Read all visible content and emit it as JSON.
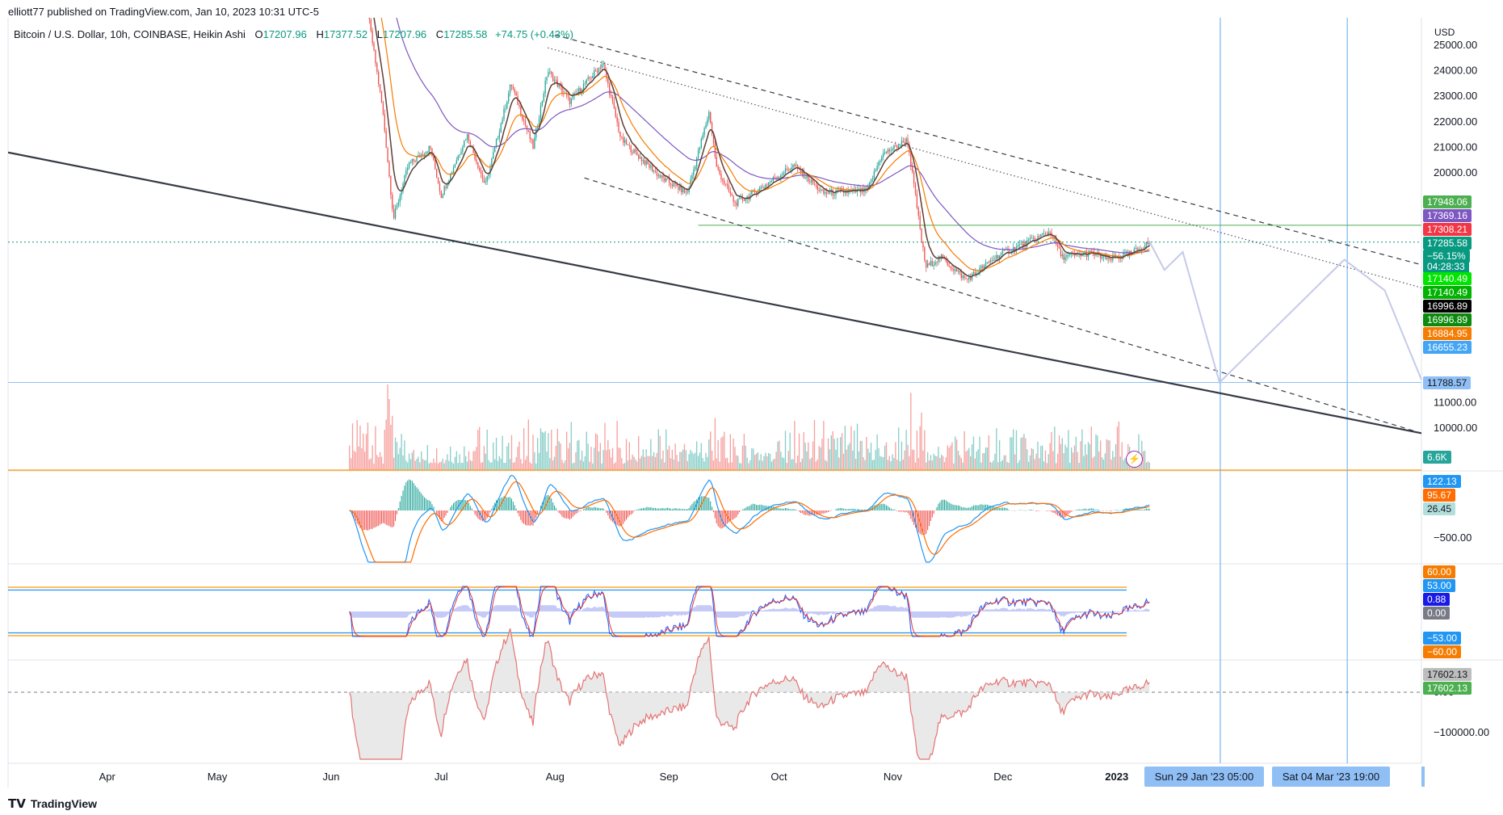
{
  "header": {
    "publisher": "elliott77 published on TradingView.com, Jan 10, 2023 10:31 UTC-5"
  },
  "legend": {
    "symbol": "Bitcoin / U.S. Dollar, 10h, COINBASE, Heikin Ashi",
    "o_label": "O",
    "o_value": "17207.96",
    "h_label": "H",
    "h_value": "17377.52",
    "l_label": "L",
    "l_value": "17207.96",
    "c_label": "C",
    "c_value": "17285.58",
    "change": "+74.75 (+0.43%)"
  },
  "footer": {
    "brand": "TradingView",
    "logo_icon": "tradingview-logo-icon"
  },
  "currency": "USD",
  "colors": {
    "up": "#26a69a",
    "down": "#ef5350",
    "ema_orange": "#f57c00",
    "ma_purple": "#7e57c2",
    "green_line": "#4caf50",
    "trend": "#363a45",
    "projection": "#c5cae9",
    "vline": "#5aa8f0",
    "hline_blue": "#2196f3",
    "osc_orange": "#ff9800"
  },
  "chart_data": {
    "type": "candlestick",
    "interval": "10h",
    "price_axis": {
      "ticks": [
        "25000.00",
        "24000.00",
        "23000.00",
        "22000.00",
        "21000.00",
        "20000.00",
        "11000.00",
        "10000.00"
      ],
      "tick_values": [
        25000,
        24000,
        23000,
        22000,
        21000,
        20000,
        11000,
        10000
      ]
    },
    "x_axis": {
      "ticks": [
        "Apr",
        "May",
        "Jun",
        "Jul",
        "Aug",
        "Sep",
        "Oct",
        "Nov",
        "Dec",
        "2023"
      ]
    },
    "price_labels": [
      {
        "text": "17948.06",
        "color": "#4caf50"
      },
      {
        "text": "17369.16",
        "color": "#7e57c2"
      },
      {
        "text": "17308.21",
        "color": "#f23645"
      },
      {
        "text": "17285.58",
        "color": "#089981"
      },
      {
        "text": "−56.15%",
        "color": "#089981"
      },
      {
        "text": "04:28:33",
        "color": "#089981"
      },
      {
        "text": "17140.49",
        "color": "#00e600"
      },
      {
        "text": "17140.49",
        "color": "#00b300"
      },
      {
        "text": "16996.89",
        "color": "#000000"
      },
      {
        "text": "16996.89",
        "color": "#0c8a0c"
      },
      {
        "text": "16884.95",
        "color": "#f57c00"
      },
      {
        "text": "16655.23",
        "color": "#42a5f5"
      },
      {
        "text": "11788.57",
        "color": "#90bff5"
      },
      {
        "text": "6.6K",
        "color": "#26a69a"
      }
    ],
    "macd_axis": {
      "ticks": [
        "−500.00"
      ]
    },
    "macd_labels": [
      {
        "text": "122.13",
        "color": "#2196f3"
      },
      {
        "text": "95.67",
        "color": "#ff6d00"
      },
      {
        "text": "26.45",
        "color": "#b2dfdb"
      }
    ],
    "osc_labels": [
      {
        "text": "60.00",
        "color": "#f57c00"
      },
      {
        "text": "53.00",
        "color": "#2196f3"
      },
      {
        "text": "0.88",
        "color": "#1a1ae6"
      },
      {
        "text": "0.00",
        "color": "#787b86"
      },
      {
        "text": "−53.00",
        "color": "#2196f3"
      },
      {
        "text": "−60.00",
        "color": "#f57c00"
      }
    ],
    "obv_axis": {
      "ticks": [
        "0.00",
        "−100000.00"
      ]
    },
    "obv_labels": [
      {
        "text": "17602.13",
        "color": "#bdbdbd"
      },
      {
        "text": "17602.13",
        "color": "#4caf50"
      }
    ],
    "date_markers": [
      "Sun 29 Jan '23   05:00",
      "Sat 04 Mar '23   19:00"
    ],
    "price_anchors": [
      [
        "2022-06-06",
        31000
      ],
      [
        "2022-06-15",
        22500
      ],
      [
        "2022-06-18",
        18200
      ],
      [
        "2022-06-22",
        20300
      ],
      [
        "2022-06-28",
        21000
      ],
      [
        "2022-07-01",
        19100
      ],
      [
        "2022-07-08",
        21500
      ],
      [
        "2022-07-13",
        19500
      ],
      [
        "2022-07-20",
        23500
      ],
      [
        "2022-07-26",
        21000
      ],
      [
        "2022-07-30",
        24000
      ],
      [
        "2022-08-05",
        22800
      ],
      [
        "2022-08-14",
        24300
      ],
      [
        "2022-08-19",
        21300
      ],
      [
        "2022-08-30",
        19800
      ],
      [
        "2022-09-06",
        19200
      ],
      [
        "2022-09-12",
        22400
      ],
      [
        "2022-09-14",
        20200
      ],
      [
        "2022-09-19",
        18800
      ],
      [
        "2022-09-23",
        19100
      ],
      [
        "2022-10-05",
        20300
      ],
      [
        "2022-10-13",
        19200
      ],
      [
        "2022-10-25",
        19300
      ],
      [
        "2022-10-29",
        20700
      ],
      [
        "2022-11-05",
        21300
      ],
      [
        "2022-11-09",
        17200
      ],
      [
        "2022-11-10",
        16300
      ],
      [
        "2022-11-14",
        16700
      ],
      [
        "2022-11-21",
        15800
      ],
      [
        "2022-11-30",
        16800
      ],
      [
        "2022-12-05",
        17100
      ],
      [
        "2022-12-14",
        17700
      ],
      [
        "2022-12-17",
        16700
      ],
      [
        "2022-12-25",
        16850
      ],
      [
        "2022-12-30",
        16600
      ],
      [
        "2023-01-05",
        16850
      ],
      [
        "2023-01-10",
        17285
      ]
    ],
    "projection_path": [
      [
        "2023-01-10",
        17285
      ],
      [
        "2023-01-14",
        16200
      ],
      [
        "2023-01-19",
        16900
      ],
      [
        "2023-01-29",
        11788
      ],
      [
        "2023-03-04",
        16600
      ],
      [
        "2023-03-15",
        15400
      ],
      [
        "2023-03-25",
        11900
      ]
    ],
    "trendlines": [
      {
        "style": "solid",
        "from": [
          "2022-03-05",
          20800
        ],
        "to": [
          "2023-03-25",
          9800
        ]
      },
      {
        "style": "dashed",
        "from": [
          "2022-08-01",
          25400
        ],
        "to": [
          "2023-03-25",
          16400
        ]
      },
      {
        "style": "dashed",
        "from": [
          "2022-08-09",
          19800
        ],
        "to": [
          "2023-03-25",
          9800
        ]
      },
      {
        "style": "dotted",
        "from": [
          "2022-07-30",
          24900
        ],
        "to": [
          "2023-03-25",
          15500
        ]
      }
    ],
    "horizontal_lines": [
      {
        "price": 17948,
        "from": "2022-09-09",
        "color": "#4caf50"
      },
      {
        "price": 17285,
        "from": "2022-03-05",
        "color": "#089981",
        "style": "dotted"
      },
      {
        "price": 11788,
        "from": "2022-03-05",
        "color": "#90bff5"
      }
    ]
  }
}
